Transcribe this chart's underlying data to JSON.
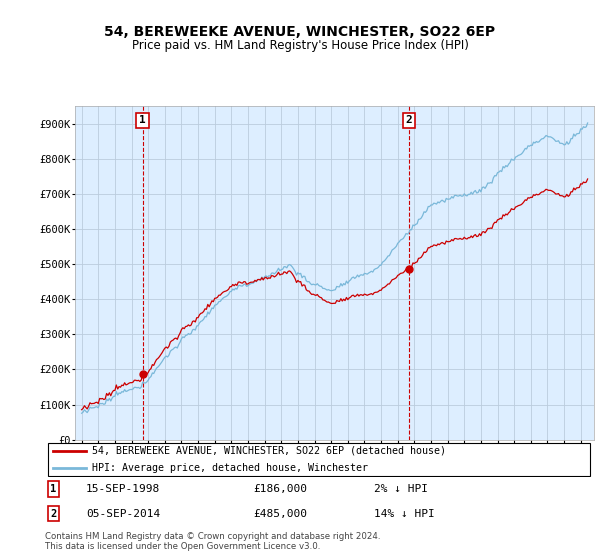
{
  "title": "54, BEREWEEKE AVENUE, WINCHESTER, SO22 6EP",
  "subtitle": "Price paid vs. HM Land Registry's House Price Index (HPI)",
  "legend_line1": "54, BEREWEEKE AVENUE, WINCHESTER, SO22 6EP (detached house)",
  "legend_line2": "HPI: Average price, detached house, Winchester",
  "annotation1_date": "15-SEP-1998",
  "annotation1_price": 186000,
  "annotation1_note": "2% ↓ HPI",
  "annotation2_date": "05-SEP-2014",
  "annotation2_price": 485000,
  "annotation2_note": "14% ↓ HPI",
  "footnote": "Contains HM Land Registry data © Crown copyright and database right 2024.\nThis data is licensed under the Open Government Licence v3.0.",
  "ylim": [
    0,
    950000
  ],
  "yticks": [
    0,
    100000,
    200000,
    300000,
    400000,
    500000,
    600000,
    700000,
    800000,
    900000
  ],
  "ytick_labels": [
    "£0",
    "£100K",
    "£200K",
    "£300K",
    "£400K",
    "£500K",
    "£600K",
    "£700K",
    "£800K",
    "£900K"
  ],
  "hpi_color": "#7ab8d9",
  "price_color": "#cc0000",
  "annotation_box_color": "#cc0000",
  "chart_bg_color": "#ddeeff",
  "background_color": "#ffffff",
  "grid_color": "#bbccdd"
}
